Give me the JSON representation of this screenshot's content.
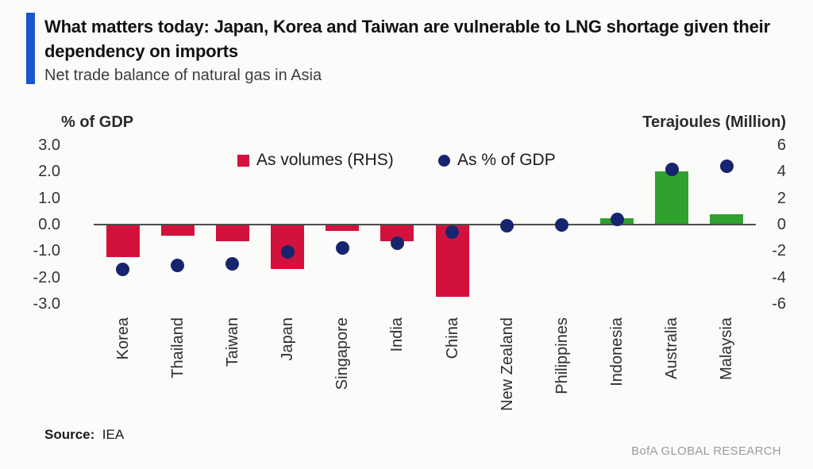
{
  "header": {
    "title": "What matters today: Japan, Korea and Taiwan are vulnerable to LNG shortage given their dependency on imports",
    "subtitle": "Net trade balance of natural gas in Asia"
  },
  "axes": {
    "left_label": "% of GDP",
    "right_label": "Terajoules (Million)"
  },
  "legend": [
    {
      "label": "As volumes (RHS)",
      "marker": "square-icon",
      "color": "#d2123c"
    },
    {
      "label": "As % of GDP",
      "marker": "circle-icon",
      "color": "#17256e"
    }
  ],
  "chart_data": {
    "type": "bar",
    "title": "Net trade balance of natural gas in Asia",
    "categories": [
      "Korea",
      "Thailand",
      "Taiwan",
      "Japan",
      "Singapore",
      "India",
      "China",
      "New Zealand",
      "Philippines",
      "Indonesia",
      "Australia",
      "Malaysia"
    ],
    "series": [
      {
        "name": "As volumes (RHS)",
        "type": "bar",
        "axis": "right",
        "unit": "Terajoules (Million)",
        "values": [
          -2.4,
          -0.8,
          -1.2,
          -3.3,
          -0.4,
          -1.2,
          -5.4,
          0,
          0,
          0.5,
          4.0,
          0.8
        ]
      },
      {
        "name": "As % of GDP",
        "type": "scatter",
        "axis": "left",
        "unit": "% of GDP",
        "values": [
          -1.7,
          -1.55,
          -1.5,
          -1.05,
          -0.9,
          -0.7,
          -0.3,
          -0.05,
          0,
          0.2,
          2.1,
          2.2
        ]
      }
    ],
    "left_axis": {
      "label": "% of GDP",
      "ticks": [
        "3.0",
        "2.0",
        "1.0",
        "0.0",
        "-1.0",
        "-2.0",
        "-3.0"
      ],
      "range": [
        -3.0,
        3.0
      ]
    },
    "right_axis": {
      "label": "Terajoules (Million)",
      "ticks": [
        "6",
        "4",
        "2",
        "0",
        "-2",
        "-4",
        "-6"
      ],
      "range": [
        -6,
        6
      ]
    },
    "grid": false,
    "legend_position": "top-inside"
  },
  "colors": {
    "bar_negative": "#d2123c",
    "bar_positive": "#2fa12f",
    "dot": "#17256e",
    "accent_bar": "#1a56cc",
    "zero_line": "#4d4d4d"
  },
  "footer": {
    "source_label": "Source:",
    "source_value": "IEA",
    "brand": "BofA GLOBAL RESEARCH"
  }
}
